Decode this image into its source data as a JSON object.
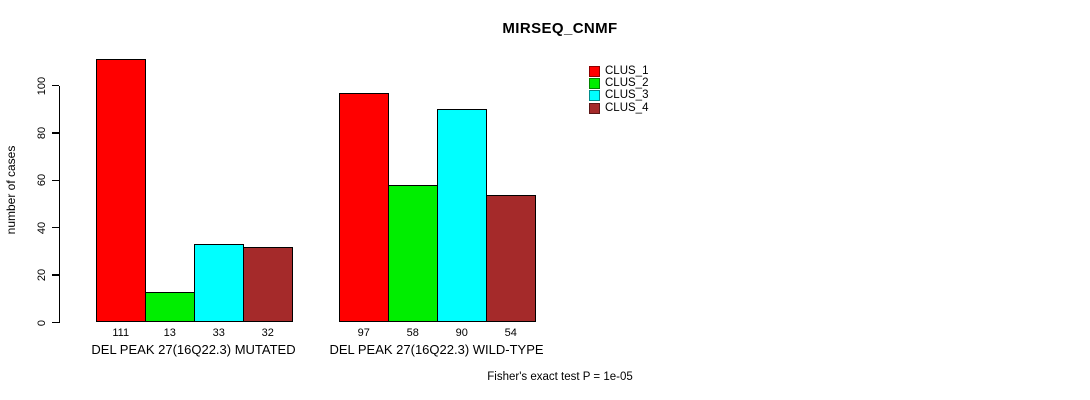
{
  "chart_data": {
    "type": "bar",
    "title": "MIRSEQ_CNMF",
    "ylabel": "number of cases",
    "xlabel": "",
    "ylim": [
      0,
      100
    ],
    "yticks": [
      0,
      20,
      40,
      60,
      80,
      100
    ],
    "grid": false,
    "legend_position": "top-right-inside",
    "categories": [
      "DEL PEAK 27(16Q22.3) MUTATED",
      "DEL PEAK 27(16Q22.3) WILD-TYPE"
    ],
    "series": [
      {
        "name": "CLUS_1",
        "color": "#ff0000",
        "values": [
          111,
          97
        ]
      },
      {
        "name": "CLUS_2",
        "color": "#00ee00",
        "values": [
          13,
          58
        ]
      },
      {
        "name": "CLUS_3",
        "color": "#00ffff",
        "values": [
          33,
          90
        ]
      },
      {
        "name": "CLUS_4",
        "color": "#a52a2a",
        "values": [
          32,
          54
        ]
      }
    ],
    "bar_value_labels_visible": true,
    "annotation": "Fisher's exact test P = 1e-05",
    "colors": {
      "background": "#ffffff",
      "axis": "#000000",
      "bar_border": "#000000",
      "text": "#000000"
    }
  }
}
